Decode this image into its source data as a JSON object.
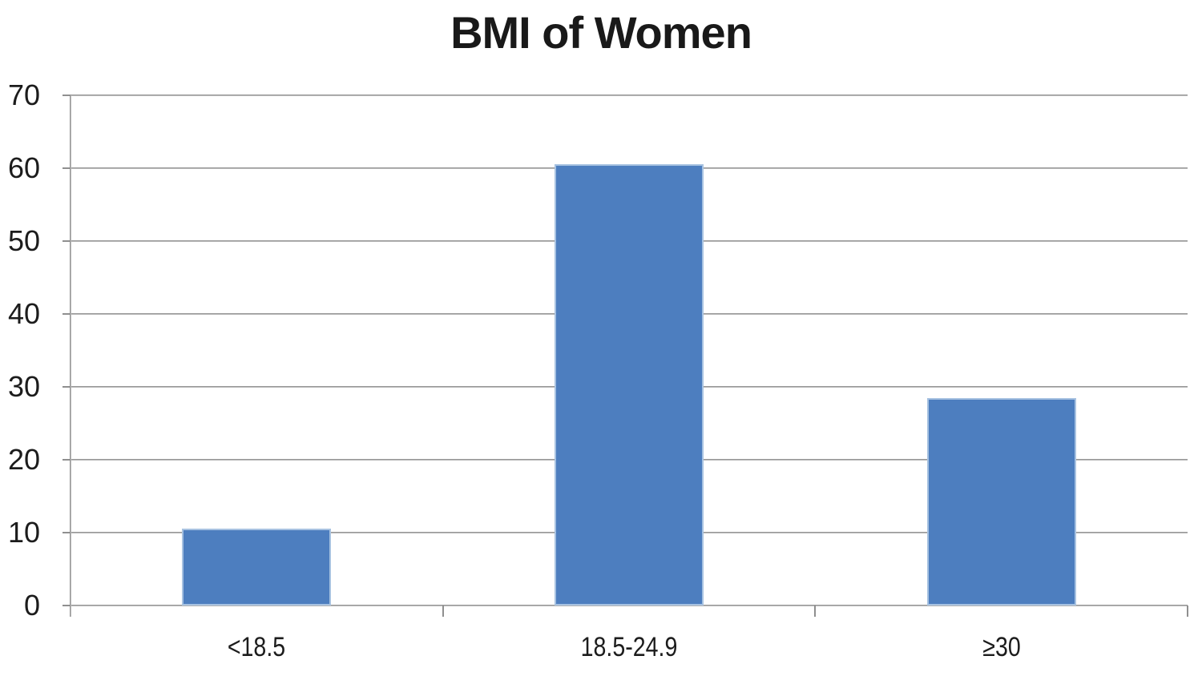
{
  "chart_data": {
    "type": "bar",
    "title": "BMI of Women",
    "categories": [
      "<18.5",
      "18.5-24.9",
      "≥30"
    ],
    "values": [
      10.6,
      60.6,
      28.5
    ],
    "xlabel": "",
    "ylabel": "",
    "ylim": [
      0,
      70
    ],
    "yticks": [
      0,
      10,
      20,
      30,
      40,
      50,
      60,
      70
    ],
    "grid": "horizontal",
    "legend": "none",
    "colors": {
      "bar_fill": "#4d7ebf",
      "bar_border": "#a7c2e1",
      "gridline": "#8f8f8f",
      "text": "#1c1c1c",
      "background": "#ffffff"
    }
  }
}
